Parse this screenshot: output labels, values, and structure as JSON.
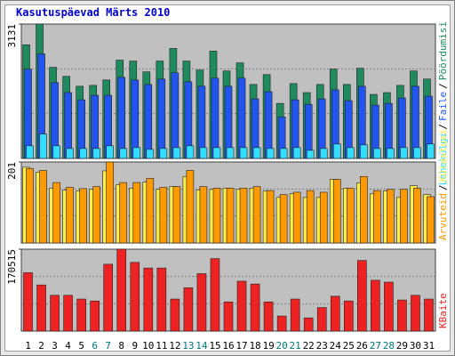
{
  "legend_separator": "/",
  "chart_data": [
    {
      "type": "bar",
      "title": "Kasutuspäevad Märts 2010",
      "ylim": [
        0,
        3131
      ],
      "yticks": [
        3131
      ],
      "series": [
        {
          "name": "Pöördumisi",
          "color": "#1e8a5e",
          "values": [
            2647,
            3131,
            2122,
            1912,
            1681,
            1702,
            1828,
            2290,
            2269,
            2017,
            2269,
            2563,
            2269,
            2059,
            2500,
            2038,
            2227,
            1723,
            1954,
            1282,
            1744,
            1534,
            1723,
            2080,
            1723,
            2101,
            1492,
            1534,
            1702,
            2038,
            1849
          ]
        },
        {
          "name": "Faile",
          "color": "#2255ee",
          "values": [
            2080,
            2437,
            1765,
            1534,
            1366,
            1471,
            1471,
            1891,
            1828,
            1723,
            1849,
            1996,
            1786,
            1681,
            1870,
            1681,
            1870,
            1387,
            1555,
            966,
            1366,
            1261,
            1387,
            1597,
            1345,
            1681,
            1240,
            1282,
            1408,
            1681,
            1450
          ]
        },
        {
          "name": "Lehekülgi",
          "color": "#33ddff",
          "values": [
            294,
            567,
            294,
            231,
            231,
            231,
            294,
            231,
            252,
            210,
            231,
            252,
            294,
            252,
            252,
            252,
            252,
            252,
            231,
            231,
            252,
            189,
            231,
            336,
            252,
            315,
            231,
            231,
            252,
            252,
            336
          ]
        }
      ]
    },
    {
      "type": "bar",
      "ylim": [
        0,
        201
      ],
      "yticks": [
        201
      ],
      "series": [
        {
          "name": "Külastusi",
          "color": "#ffee44",
          "values": [
            188,
            176,
            136,
            131,
            129,
            133,
            179,
            145,
            136,
            151,
            133,
            140,
            165,
            131,
            133,
            136,
            133,
            136,
            129,
            113,
            122,
            113,
            113,
            158,
            136,
            149,
            122,
            129,
            113,
            142,
            120
          ]
        },
        {
          "name": "Arvuteid",
          "color": "#ff9900",
          "values": [
            185,
            180,
            150,
            138,
            135,
            140,
            201,
            150,
            150,
            160,
            138,
            140,
            180,
            140,
            136,
            136,
            136,
            140,
            130,
            120,
            126,
            130,
            126,
            158,
            136,
            165,
            130,
            133,
            133,
            136,
            115
          ]
        }
      ]
    },
    {
      "type": "bar",
      "ylim": [
        0,
        170515
      ],
      "yticks": [
        170515
      ],
      "categories": [
        "1",
        "2",
        "3",
        "4",
        "5",
        "6",
        "7",
        "8",
        "9",
        "10",
        "11",
        "12",
        "13",
        "14",
        "15",
        "16",
        "17",
        "18",
        "19",
        "20",
        "21",
        "22",
        "23",
        "24",
        "25",
        "26",
        "27",
        "28",
        "29",
        "30",
        "31"
      ],
      "category_colors": [
        "#000000",
        "#000000",
        "#000000",
        "#000000",
        "#000000",
        "#007777",
        "#007777",
        "#000000",
        "#000000",
        "#000000",
        "#000000",
        "#000000",
        "#007777",
        "#007777",
        "#000000",
        "#000000",
        "#000000",
        "#000000",
        "#000000",
        "#007777",
        "#007777",
        "#000000",
        "#000000",
        "#000000",
        "#000000",
        "#000000",
        "#007777",
        "#007777",
        "#000000",
        "#000000",
        "#000000"
      ],
      "series": [
        {
          "name": "KBaite",
          "color": "#ee2222",
          "values": [
            121520,
            96040,
            74480,
            74480,
            66640,
            62720,
            139160,
            170515,
            143080,
            131320,
            131320,
            66640,
            90160,
            119560,
            150920,
            60760,
            103880,
            98000,
            60760,
            31360,
            66640,
            27440,
            49000,
            72520,
            62720,
            147000,
            105840,
            101920,
            64680,
            74480,
            66640
          ]
        }
      ]
    }
  ]
}
